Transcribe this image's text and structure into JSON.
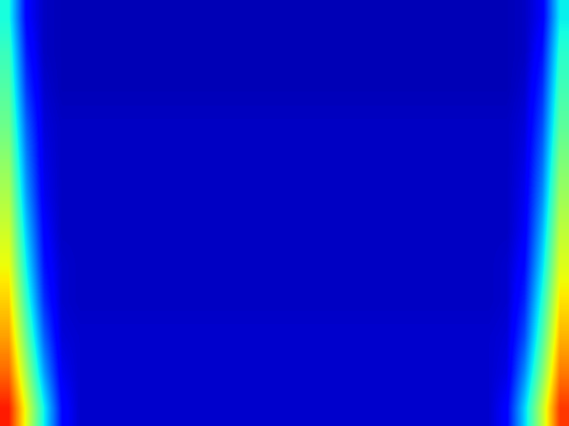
{
  "chart_data": {
    "type": "heatmap",
    "color": "jet",
    "tick_labels": false,
    "color_range": [
      0,
      1
    ],
    "cells": [
      [
        0.38,
        0.12,
        0.06,
        0.05,
        0.05,
        0.05,
        0.05,
        0.05,
        0.05,
        0.05,
        0.05,
        0.05,
        0.05,
        0.05,
        0.05,
        0.05,
        0.05,
        0.05,
        0.05,
        0.05,
        0.05,
        0.05,
        0.05,
        0.05,
        0.05,
        0.05,
        0.05,
        0.05,
        0.05,
        0.06,
        0.11,
        0.36
      ],
      [
        0.42,
        0.15,
        0.06,
        0.05,
        0.05,
        0.05,
        0.05,
        0.05,
        0.05,
        0.05,
        0.05,
        0.05,
        0.05,
        0.05,
        0.05,
        0.05,
        0.05,
        0.05,
        0.05,
        0.05,
        0.05,
        0.05,
        0.05,
        0.05,
        0.05,
        0.05,
        0.05,
        0.05,
        0.05,
        0.06,
        0.14,
        0.4
      ],
      [
        0.45,
        0.18,
        0.07,
        0.05,
        0.05,
        0.05,
        0.05,
        0.05,
        0.05,
        0.05,
        0.05,
        0.05,
        0.05,
        0.05,
        0.05,
        0.05,
        0.05,
        0.05,
        0.05,
        0.05,
        0.05,
        0.05,
        0.05,
        0.05,
        0.05,
        0.05,
        0.05,
        0.05,
        0.05,
        0.07,
        0.17,
        0.43
      ],
      [
        0.48,
        0.22,
        0.08,
        0.06,
        0.06,
        0.06,
        0.06,
        0.06,
        0.06,
        0.06,
        0.06,
        0.06,
        0.06,
        0.06,
        0.06,
        0.06,
        0.06,
        0.06,
        0.06,
        0.06,
        0.06,
        0.06,
        0.06,
        0.06,
        0.06,
        0.06,
        0.06,
        0.06,
        0.06,
        0.08,
        0.2,
        0.46
      ],
      [
        0.52,
        0.25,
        0.09,
        0.06,
        0.06,
        0.06,
        0.06,
        0.06,
        0.06,
        0.06,
        0.06,
        0.06,
        0.06,
        0.06,
        0.06,
        0.06,
        0.06,
        0.06,
        0.06,
        0.06,
        0.06,
        0.06,
        0.06,
        0.06,
        0.06,
        0.06,
        0.06,
        0.06,
        0.06,
        0.09,
        0.23,
        0.5
      ],
      [
        0.56,
        0.28,
        0.1,
        0.06,
        0.06,
        0.06,
        0.06,
        0.06,
        0.06,
        0.06,
        0.06,
        0.06,
        0.06,
        0.06,
        0.06,
        0.06,
        0.06,
        0.06,
        0.06,
        0.06,
        0.06,
        0.06,
        0.06,
        0.06,
        0.06,
        0.06,
        0.06,
        0.06,
        0.06,
        0.1,
        0.26,
        0.54
      ],
      [
        0.6,
        0.32,
        0.12,
        0.06,
        0.06,
        0.06,
        0.06,
        0.06,
        0.06,
        0.06,
        0.06,
        0.06,
        0.06,
        0.06,
        0.06,
        0.06,
        0.06,
        0.06,
        0.06,
        0.06,
        0.06,
        0.06,
        0.06,
        0.06,
        0.06,
        0.06,
        0.06,
        0.06,
        0.06,
        0.11,
        0.3,
        0.58
      ],
      [
        0.64,
        0.36,
        0.14,
        0.07,
        0.06,
        0.06,
        0.06,
        0.06,
        0.06,
        0.06,
        0.06,
        0.06,
        0.06,
        0.06,
        0.06,
        0.06,
        0.06,
        0.06,
        0.06,
        0.06,
        0.06,
        0.06,
        0.06,
        0.06,
        0.06,
        0.06,
        0.06,
        0.06,
        0.07,
        0.13,
        0.34,
        0.62
      ],
      [
        0.69,
        0.41,
        0.17,
        0.07,
        0.06,
        0.06,
        0.06,
        0.06,
        0.06,
        0.06,
        0.06,
        0.06,
        0.06,
        0.06,
        0.06,
        0.06,
        0.06,
        0.06,
        0.06,
        0.06,
        0.06,
        0.06,
        0.06,
        0.06,
        0.06,
        0.06,
        0.06,
        0.06,
        0.07,
        0.16,
        0.39,
        0.67
      ],
      [
        0.74,
        0.47,
        0.22,
        0.08,
        0.07,
        0.07,
        0.07,
        0.07,
        0.07,
        0.07,
        0.07,
        0.07,
        0.07,
        0.07,
        0.07,
        0.07,
        0.07,
        0.07,
        0.07,
        0.07,
        0.07,
        0.07,
        0.07,
        0.07,
        0.07,
        0.07,
        0.07,
        0.07,
        0.08,
        0.2,
        0.44,
        0.72
      ],
      [
        0.8,
        0.54,
        0.28,
        0.1,
        0.07,
        0.07,
        0.07,
        0.07,
        0.07,
        0.07,
        0.07,
        0.07,
        0.07,
        0.07,
        0.07,
        0.07,
        0.07,
        0.07,
        0.07,
        0.07,
        0.07,
        0.07,
        0.07,
        0.07,
        0.07,
        0.07,
        0.07,
        0.07,
        0.09,
        0.26,
        0.5,
        0.78
      ],
      [
        0.88,
        0.62,
        0.36,
        0.13,
        0.07,
        0.07,
        0.07,
        0.07,
        0.07,
        0.07,
        0.07,
        0.07,
        0.07,
        0.07,
        0.07,
        0.07,
        0.07,
        0.07,
        0.07,
        0.07,
        0.07,
        0.07,
        0.07,
        0.07,
        0.07,
        0.07,
        0.07,
        0.07,
        0.12,
        0.33,
        0.58,
        0.85
      ]
    ]
  }
}
